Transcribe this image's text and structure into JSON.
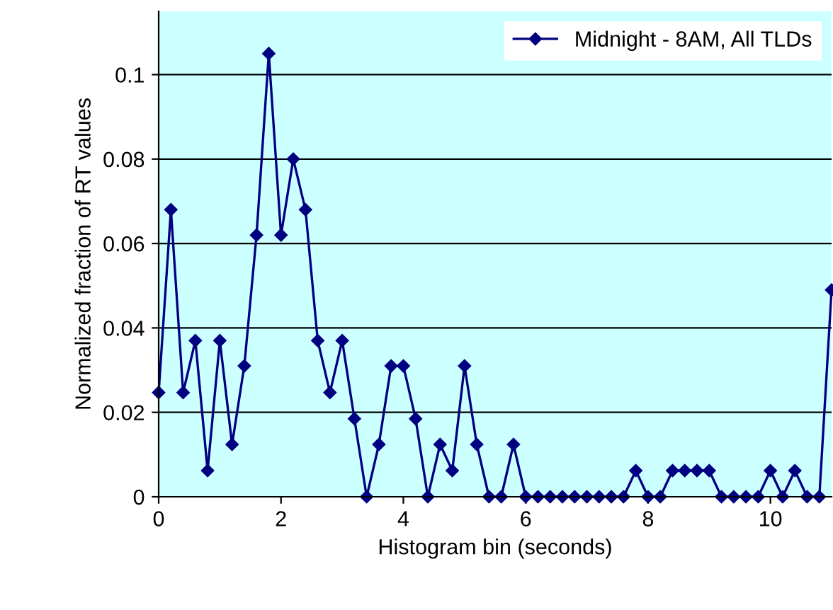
{
  "chart_data": {
    "type": "line",
    "xlabel": "Histogram bin (seconds)",
    "ylabel": "Normalized fraction of RT values",
    "x": [
      0,
      0.2,
      0.4,
      0.6,
      0.8,
      1.0,
      1.2,
      1.4,
      1.6,
      1.8,
      2.0,
      2.2,
      2.4,
      2.6,
      2.8,
      3.0,
      3.2,
      3.4,
      3.6,
      3.8,
      4.0,
      4.2,
      4.4,
      4.6,
      4.8,
      5.0,
      5.2,
      5.4,
      5.6,
      5.8,
      6.0,
      6.2,
      6.4,
      6.6,
      6.8,
      7.0,
      7.2,
      7.4,
      7.6,
      7.8,
      8.0,
      8.2,
      8.4,
      8.6,
      8.8,
      9.0,
      9.2,
      9.4,
      9.6,
      9.8,
      10.0,
      10.2,
      10.4,
      10.6,
      10.8,
      11.0
    ],
    "series": [
      {
        "name": "Midnight - 8AM, All TLDs",
        "color": "#000080",
        "values": [
          0.0247,
          0.068,
          0.0247,
          0.037,
          0.0062,
          0.037,
          0.0124,
          0.031,
          0.062,
          0.105,
          0.062,
          0.08,
          0.068,
          0.037,
          0.0247,
          0.037,
          0.0185,
          0,
          0.0124,
          0.031,
          0.031,
          0.0185,
          0,
          0.0124,
          0.0062,
          0.031,
          0.0124,
          0,
          0,
          0.0124,
          0,
          0,
          0,
          0,
          0,
          0,
          0,
          0,
          0,
          0.0062,
          0,
          0,
          0.0062,
          0.0062,
          0.0062,
          0.0062,
          0,
          0,
          0,
          0,
          0.0062,
          0,
          0.0062,
          0,
          0,
          0.049
        ]
      }
    ],
    "xlim": [
      0,
      11
    ],
    "xticks": [
      0,
      2,
      4,
      6,
      8,
      10
    ],
    "ylim": [
      0,
      0.115
    ],
    "yticks": [
      0,
      0.02,
      0.04,
      0.06,
      0.08,
      0.1
    ],
    "grid": "y",
    "legend": "top right",
    "marker": "diamond",
    "line_style": "solid"
  }
}
